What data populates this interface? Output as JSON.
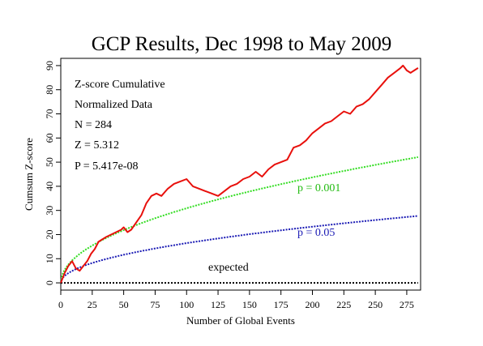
{
  "chart_data": {
    "type": "line",
    "title": "GCP Results, Dec 1998 to May 2009",
    "xlabel": "Number of Global Events",
    "ylabel": "Cumsum Z-score",
    "xlim": [
      0,
      286
    ],
    "ylim": [
      -3,
      93
    ],
    "x_ticks": [
      "0",
      "25",
      "50",
      "75",
      "100",
      "125",
      "150",
      "175",
      "200",
      "225",
      "250",
      "275"
    ],
    "y_ticks": [
      "0",
      "10",
      "20",
      "30",
      "40",
      "50",
      "60",
      "70",
      "80",
      "90"
    ],
    "grid": false,
    "annotations": [
      "Z-score Cumulative",
      "Normalized Data",
      "N = 284",
      "Z = 5.312",
      "P = 5.417e-08"
    ],
    "series": [
      {
        "name": "Cumsum Z-score",
        "color": "#e8100c",
        "x": [
          0,
          3,
          6,
          9,
          12,
          15,
          18,
          21,
          24,
          27,
          30,
          33,
          36,
          40,
          44,
          48,
          50,
          53,
          56,
          60,
          64,
          68,
          72,
          76,
          80,
          85,
          90,
          95,
          100,
          105,
          110,
          115,
          120,
          125,
          130,
          135,
          140,
          145,
          150,
          155,
          160,
          165,
          170,
          175,
          180,
          185,
          190,
          195,
          200,
          205,
          210,
          215,
          220,
          225,
          230,
          235,
          240,
          245,
          250,
          255,
          260,
          265,
          270,
          272,
          275,
          278,
          281,
          284
        ],
        "values": [
          0,
          4,
          7,
          9,
          6,
          5,
          7,
          9,
          12,
          14,
          17,
          18,
          19,
          20,
          21,
          22,
          23,
          21,
          22,
          25,
          28,
          33,
          36,
          37,
          36,
          39,
          41,
          42,
          43,
          40,
          39,
          38,
          37,
          36,
          38,
          40,
          41,
          43,
          44,
          46,
          44,
          47,
          49,
          50,
          51,
          56,
          57,
          59,
          62,
          64,
          66,
          67,
          69,
          71,
          70,
          73,
          74,
          76,
          79,
          82,
          85,
          87,
          89,
          90,
          88,
          87,
          88,
          89
        ]
      },
      {
        "name": "p = 0.001",
        "color": "#33dd22",
        "label_color": "#22bb11",
        "formula_coefficient": 3.09,
        "type": "sqrt-envelope"
      },
      {
        "name": "p = 0.05",
        "color": "#1a1ab4",
        "label_color": "#1a1ab4",
        "formula_coefficient": 1.645,
        "type": "sqrt-envelope"
      },
      {
        "name": "expected",
        "color": "#000000",
        "constant": 0
      }
    ]
  }
}
